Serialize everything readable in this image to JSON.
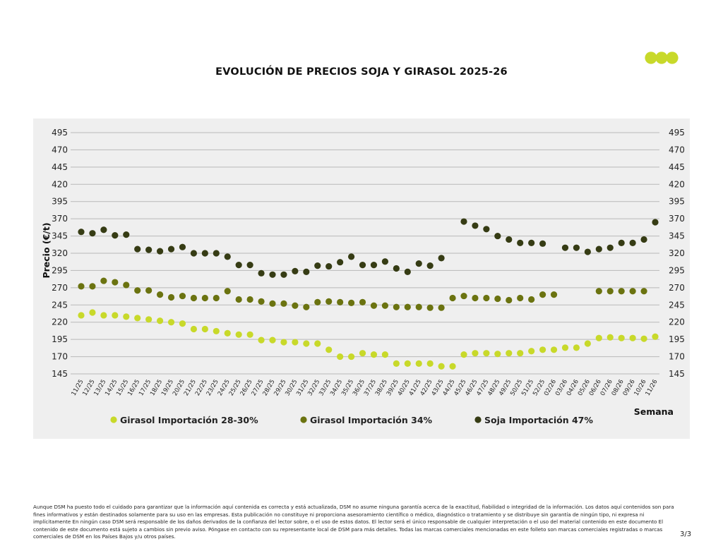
{
  "title": "EVOLUCIÓN DE PRECIOS SOJA Y GIRASOL 2025-26",
  "logo_icon": "three-green-dots-logo",
  "colors": {
    "girasol_28_30": "#c8d92a",
    "girasol_34": "#6b7310",
    "soja_47": "#363c14",
    "grid": "#b9b9b9",
    "panel": "#efefef"
  },
  "chart_data": {
    "type": "scatter",
    "ylabel": "Precio (€/t)",
    "xlabel": "Semana",
    "ylim": [
      145,
      495
    ],
    "yticks": [
      145,
      170,
      195,
      220,
      245,
      270,
      295,
      320,
      345,
      370,
      395,
      420,
      445,
      470,
      495
    ],
    "grid": true,
    "legend_position": "bottom",
    "categories": [
      "11/25",
      "12/25",
      "13/25",
      "14/25",
      "15/25",
      "16/25",
      "17/25",
      "18/25",
      "19/25",
      "20/25",
      "21/25",
      "22/25",
      "23/25",
      "24/25",
      "25/25",
      "26/25",
      "27/25",
      "28/25",
      "29/25",
      "30/25",
      "31/25",
      "32/25",
      "33/25",
      "34/25",
      "35/25",
      "36/25",
      "37/25",
      "38/25",
      "39/25",
      "40/25",
      "41/25",
      "42/25",
      "43/25",
      "44/25",
      "45/25",
      "46/25",
      "47/25",
      "48/25",
      "49/25",
      "50/25",
      "51/25",
      "52/25",
      "02/26",
      "03/26",
      "04/26",
      "05/26",
      "06/26",
      "07/26",
      "08/26",
      "09/26",
      "10/26",
      "11/26"
    ],
    "series": [
      {
        "name": "Girasol Importación 28-30%",
        "color": "#c8d92a",
        "values": [
          230,
          234,
          230,
          230,
          228,
          226,
          224,
          222,
          220,
          218,
          210,
          210,
          207,
          204,
          202,
          202,
          194,
          194,
          191,
          191,
          189,
          189,
          180,
          170,
          170,
          175,
          173,
          173,
          160,
          160,
          160,
          160,
          156,
          156,
          173,
          175,
          175,
          174,
          175,
          175,
          178,
          180,
          180,
          183,
          183,
          189,
          197,
          198,
          197,
          197,
          196,
          199
        ]
      },
      {
        "name": "Girasol Importación 34%",
        "color": "#6b7310",
        "values": [
          272,
          272,
          280,
          278,
          274,
          266,
          266,
          260,
          256,
          258,
          255,
          255,
          255,
          265,
          253,
          253,
          250,
          247,
          247,
          244,
          242,
          249,
          250,
          249,
          248,
          249,
          244,
          244,
          242,
          242,
          242,
          241,
          241,
          255,
          258,
          255,
          255,
          254,
          252,
          255,
          253,
          260,
          260,
          null,
          null,
          null,
          265,
          265,
          265,
          265,
          265,
          null
        ]
      },
      {
        "name": "Soja Importación 47%",
        "color": "#363c14",
        "values": [
          351,
          349,
          354,
          346,
          347,
          326,
          325,
          323,
          326,
          329,
          320,
          320,
          320,
          315,
          303,
          303,
          291,
          289,
          289,
          294,
          293,
          302,
          301,
          307,
          315,
          303,
          303,
          308,
          298,
          293,
          305,
          302,
          313,
          null,
          366,
          360,
          355,
          345,
          340,
          335,
          335,
          334,
          null,
          328,
          328,
          322,
          326,
          328,
          335,
          335,
          340,
          365
        ]
      }
    ]
  },
  "footer": {
    "disclaimer": "Aunque DSM ha puesto todo el cuidado para garantizar que la información aquí contenida es correcta y está actualizada, DSM no asume ninguna garantía acerca de la exactitud, fiabilidad o integridad de la información. Los datos aquí contenidos son para fines informativos y están destinados solamente para su uso en las empresas. Esta publicación no constituye ni proporciona asesoramiento científico o médico, diagnóstico o tratamiento y se distribuye sin garantía de ningún tipo, ni expresa ni implícitamente En ningún caso DSM será responsable de los daños derivados de la confianza del lector sobre, o el uso de estos datos. El lector será el único responsable de cualquier interpretación o el uso del material contenido en este documento El contenido de este documento está sujeto a cambios sin previo aviso. Póngase en contacto con su representante local de DSM para más detalles. Todas las marcas comerciales mencionadas en este folleto son marcas comerciales registradas o marcas comerciales de DSM en los Países Bajos y/u otros países.",
    "page_number": "3/3"
  }
}
